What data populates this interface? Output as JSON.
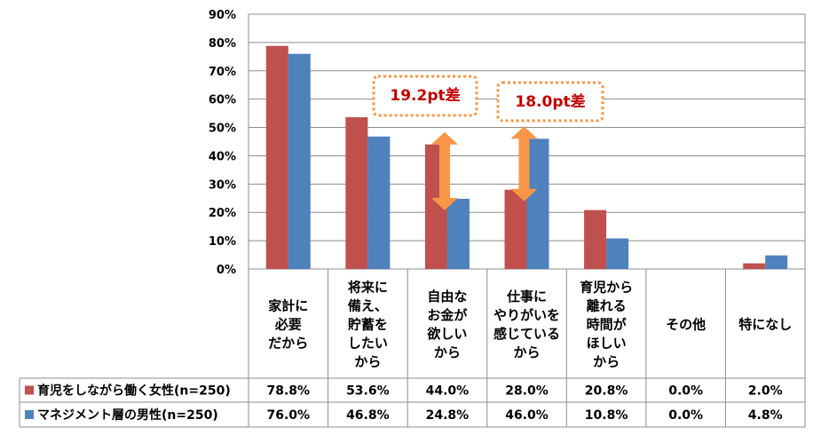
{
  "chart_data": {
    "type": "bar",
    "title": "",
    "xlabel": "",
    "ylabel": "",
    "ylim": [
      0,
      90
    ],
    "y_ticks": [
      "0%",
      "10%",
      "20%",
      "30%",
      "40%",
      "50%",
      "60%",
      "70%",
      "80%",
      "90%"
    ],
    "grid": true,
    "legend_placement": "data-table rows below chart",
    "categories": [
      "家計に必要だから",
      "将来に備え、貯蓄をしたいから",
      "自由なお金が欲しいから",
      "仕事にやりがいを感じているから",
      "育児から離れる時間がほしいから",
      "その他",
      "特になし"
    ],
    "category_label_lines": [
      [
        "家計に",
        "必要",
        "だから"
      ],
      [
        "将来に",
        "備え、",
        "貯蓄を",
        "したい",
        "から"
      ],
      [
        "自由な",
        "お金が",
        "欲しい",
        "から"
      ],
      [
        "仕事に",
        "やりがいを",
        "感じている",
        "から"
      ],
      [
        "育児から",
        "離れる",
        "時間が",
        "ほしい",
        "から"
      ],
      [
        "その他"
      ],
      [
        "特になし"
      ]
    ],
    "series": [
      {
        "name": "育児をしながら働く女性(n=250)",
        "color": "#c0504d",
        "values": [
          78.8,
          53.6,
          44.0,
          28.0,
          20.8,
          0.0,
          2.0
        ],
        "labels": [
          "78.8%",
          "53.6%",
          "44.0%",
          "28.0%",
          "20.8%",
          "0.0%",
          "2.0%"
        ]
      },
      {
        "name": "マネジメント層の男性(n=250)",
        "color": "#4f81bd",
        "values": [
          76.0,
          46.8,
          24.8,
          46.0,
          10.8,
          0.0,
          4.8
        ],
        "labels": [
          "76.0%",
          "46.8%",
          "24.8%",
          "46.0%",
          "10.8%",
          "0.0%",
          "4.8%"
        ]
      }
    ],
    "annotations": [
      {
        "text": "19.2pt差",
        "category_index": 2,
        "from": 44.0,
        "to": 24.8
      },
      {
        "text": "18.0pt差",
        "category_index": 3,
        "from": 28.0,
        "to": 46.0
      }
    ],
    "annotation_color": "#c00000",
    "annotation_border_color": "#f79646",
    "arrow_color": "#f79646"
  }
}
